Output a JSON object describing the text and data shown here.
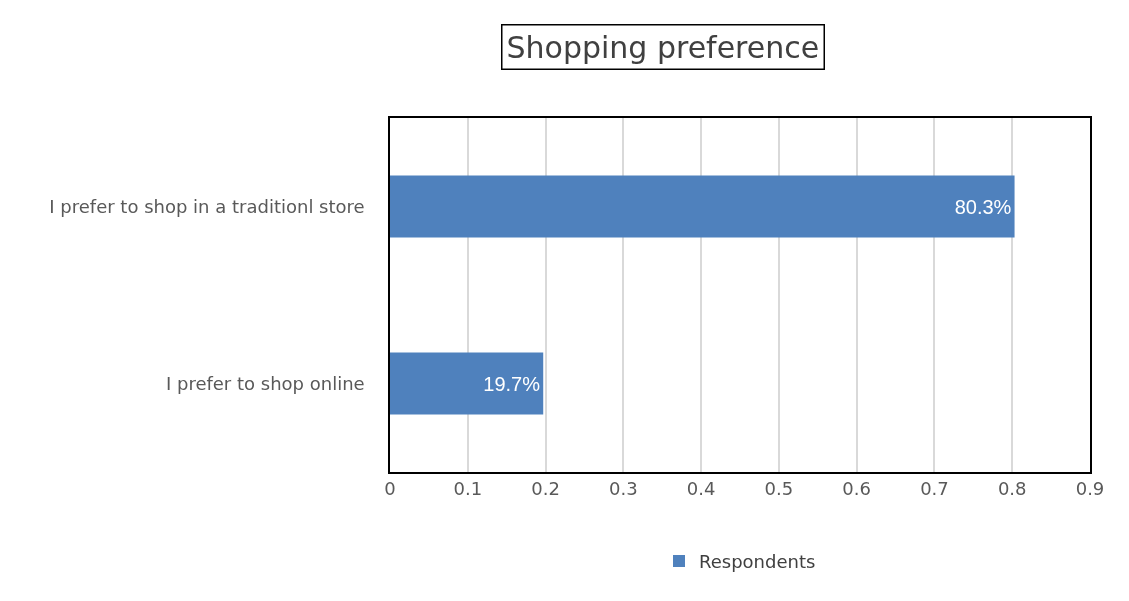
{
  "chart_data": {
    "type": "bar",
    "title": "Shopping preference",
    "orientation": "horizontal",
    "categories": [
      "I prefer to shop in a traditionl store",
      "I prefer to shop online"
    ],
    "series": [
      {
        "name": "Respondents",
        "color": "#4f81bd",
        "values": [
          0.803,
          0.197
        ],
        "value_labels": [
          "80.3%",
          "19.7%"
        ]
      }
    ],
    "xlim": [
      0,
      0.9
    ],
    "xticks": [
      0,
      0.1,
      0.2,
      0.3,
      0.4,
      0.5,
      0.6,
      0.7,
      0.8,
      0.9
    ],
    "grid": "x",
    "legend": "bottom"
  }
}
